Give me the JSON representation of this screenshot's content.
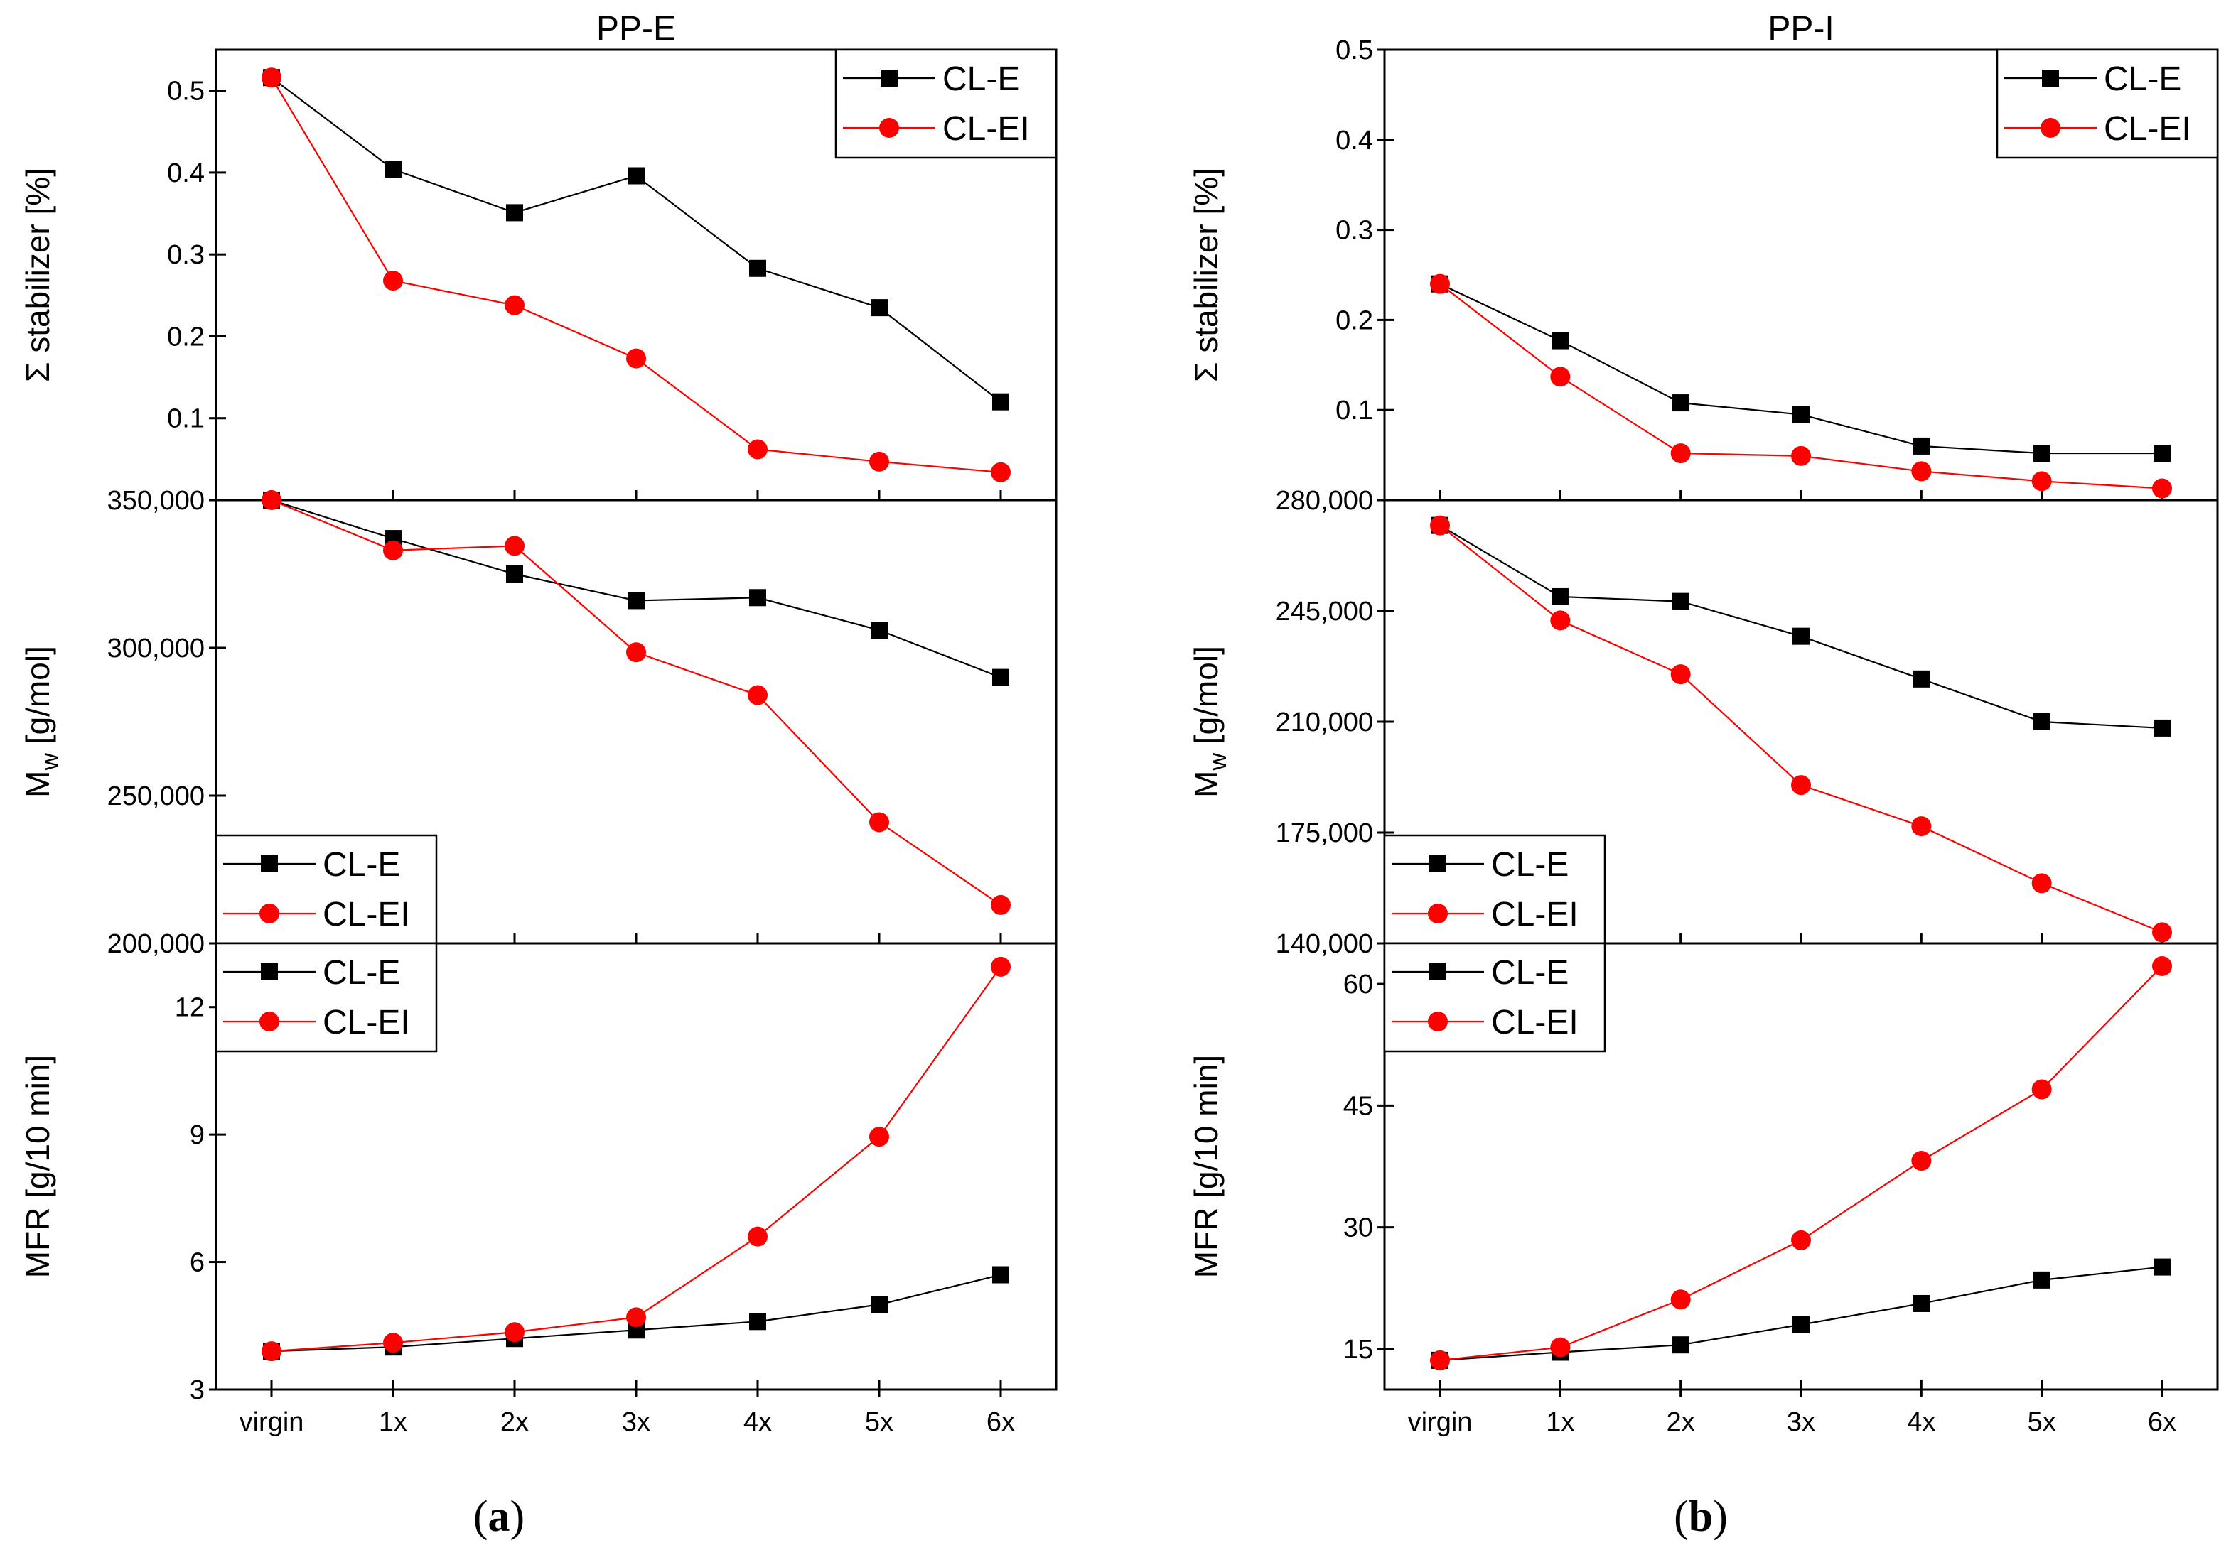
{
  "chart_data": [
    {
      "type": "line",
      "id": "a-stab",
      "title": "PP-E",
      "ylabel": "Σ stabilizer [%]",
      "ylim": [
        0.0,
        0.55
      ],
      "yticks": [
        "0.1",
        "0.2",
        "0.3",
        "0.4",
        "0.5"
      ],
      "ytick_values": [
        0.1,
        0.2,
        0.3,
        0.4,
        0.5
      ],
      "categories": [
        "virgin",
        "1x",
        "2x",
        "3x",
        "4x",
        "5x",
        "6x"
      ],
      "legend": "top-right",
      "series": [
        {
          "name": "CL-E",
          "values": [
            0.516,
            0.404,
            0.351,
            0.396,
            0.283,
            0.235,
            0.12
          ]
        },
        {
          "name": "CL-EI",
          "values": [
            0.516,
            0.268,
            0.238,
            0.173,
            0.062,
            0.047,
            0.034
          ]
        }
      ]
    },
    {
      "type": "line",
      "id": "a-mw",
      "title": "",
      "ylabel": "Mw [g/mol]",
      "ylabel_main": "M",
      "ylabel_sub": "w",
      "ylabel_rest": " [g/mol]",
      "ylim": [
        200000,
        350000
      ],
      "yticks": [
        "200,000",
        "250,000",
        "300,000",
        "350,000"
      ],
      "ytick_values": [
        200000,
        250000,
        300000,
        350000
      ],
      "categories": [
        "virgin",
        "1x",
        "2x",
        "3x",
        "4x",
        "5x",
        "6x"
      ],
      "legend": "bottom-left",
      "series": [
        {
          "name": "CL-E",
          "values": [
            350000,
            337000,
            325000,
            316000,
            317000,
            306000,
            290000
          ]
        },
        {
          "name": "CL-EI",
          "values": [
            350000,
            333000,
            334500,
            298500,
            284000,
            241000,
            213000
          ]
        }
      ]
    },
    {
      "type": "line",
      "id": "a-mfr",
      "title": "",
      "xlabel": "",
      "ylabel": "MFR [g/10 min]",
      "ylim": [
        3,
        13.5
      ],
      "yticks": [
        "3",
        "6",
        "9",
        "12"
      ],
      "ytick_values": [
        3,
        6,
        9,
        12
      ],
      "categories": [
        "virgin",
        "1x",
        "2x",
        "3x",
        "4x",
        "5x",
        "6x"
      ],
      "legend": "top-left",
      "series": [
        {
          "name": "CL-E",
          "values": [
            3.9,
            4.0,
            4.2,
            4.4,
            4.6,
            5.0,
            5.7
          ]
        },
        {
          "name": "CL-EI",
          "values": [
            3.9,
            4.1,
            4.35,
            4.7,
            6.6,
            8.95,
            12.95
          ]
        }
      ]
    },
    {
      "type": "line",
      "id": "b-stab",
      "title": "PP-I",
      "ylabel": "Σ stabilizer [%]",
      "ylim": [
        0.0,
        0.5
      ],
      "yticks": [
        "0.1",
        "0.2",
        "0.3",
        "0.4",
        "0.5"
      ],
      "ytick_values": [
        0.1,
        0.2,
        0.3,
        0.4,
        0.5
      ],
      "categories": [
        "virgin",
        "1x",
        "2x",
        "3x",
        "4x",
        "5x",
        "6x"
      ],
      "legend": "top-right",
      "series": [
        {
          "name": "CL-E",
          "values": [
            0.24,
            0.177,
            0.108,
            0.095,
            0.06,
            0.052,
            0.052
          ]
        },
        {
          "name": "CL-EI",
          "values": [
            0.24,
            0.137,
            0.052,
            0.049,
            0.032,
            0.021,
            0.013
          ]
        }
      ]
    },
    {
      "type": "line",
      "id": "b-mw",
      "title": "",
      "ylabel": "Mw [g/mol]",
      "ylabel_main": "M",
      "ylabel_sub": "w",
      "ylabel_rest": " [g/mol]",
      "ylim": [
        140000,
        280000
      ],
      "yticks": [
        "140,000",
        "175,000",
        "210,000",
        "245,000",
        "280,000"
      ],
      "ytick_values": [
        140000,
        175000,
        210000,
        245000,
        280000
      ],
      "categories": [
        "virgin",
        "1x",
        "2x",
        "3x",
        "4x",
        "5x",
        "6x"
      ],
      "legend": "bottom-left",
      "series": [
        {
          "name": "CL-E",
          "values": [
            272000,
            249500,
            248000,
            237000,
            223500,
            210000,
            208000
          ]
        },
        {
          "name": "CL-EI",
          "values": [
            272000,
            242000,
            225000,
            190000,
            177000,
            159000,
            143500
          ]
        }
      ]
    },
    {
      "type": "line",
      "id": "b-mfr",
      "title": "",
      "ylabel": "MFR [g/10 min]",
      "ylim": [
        10,
        65
      ],
      "yticks": [
        "15",
        "30",
        "45",
        "60"
      ],
      "ytick_values": [
        15,
        30,
        45,
        60
      ],
      "categories": [
        "virgin",
        "1x",
        "2x",
        "3x",
        "4x",
        "5x",
        "6x"
      ],
      "legend": "top-left",
      "series": [
        {
          "name": "CL-E",
          "values": [
            13.6,
            14.6,
            15.5,
            18.0,
            20.6,
            23.5,
            25.1
          ]
        },
        {
          "name": "CL-EI",
          "values": [
            13.6,
            15.2,
            21.1,
            28.4,
            38.2,
            47.0,
            62.2
          ]
        }
      ]
    }
  ],
  "panel_labels": [
    {
      "open": "(",
      "letter": "a",
      "close": ")"
    },
    {
      "open": "(",
      "letter": "b",
      "close": ")"
    }
  ],
  "colors": {
    "cl_e": "#000000",
    "cl_ei": "#ff0000",
    "axis": "#000000"
  },
  "markers": {
    "cl_e": "square",
    "cl_ei": "circle"
  }
}
